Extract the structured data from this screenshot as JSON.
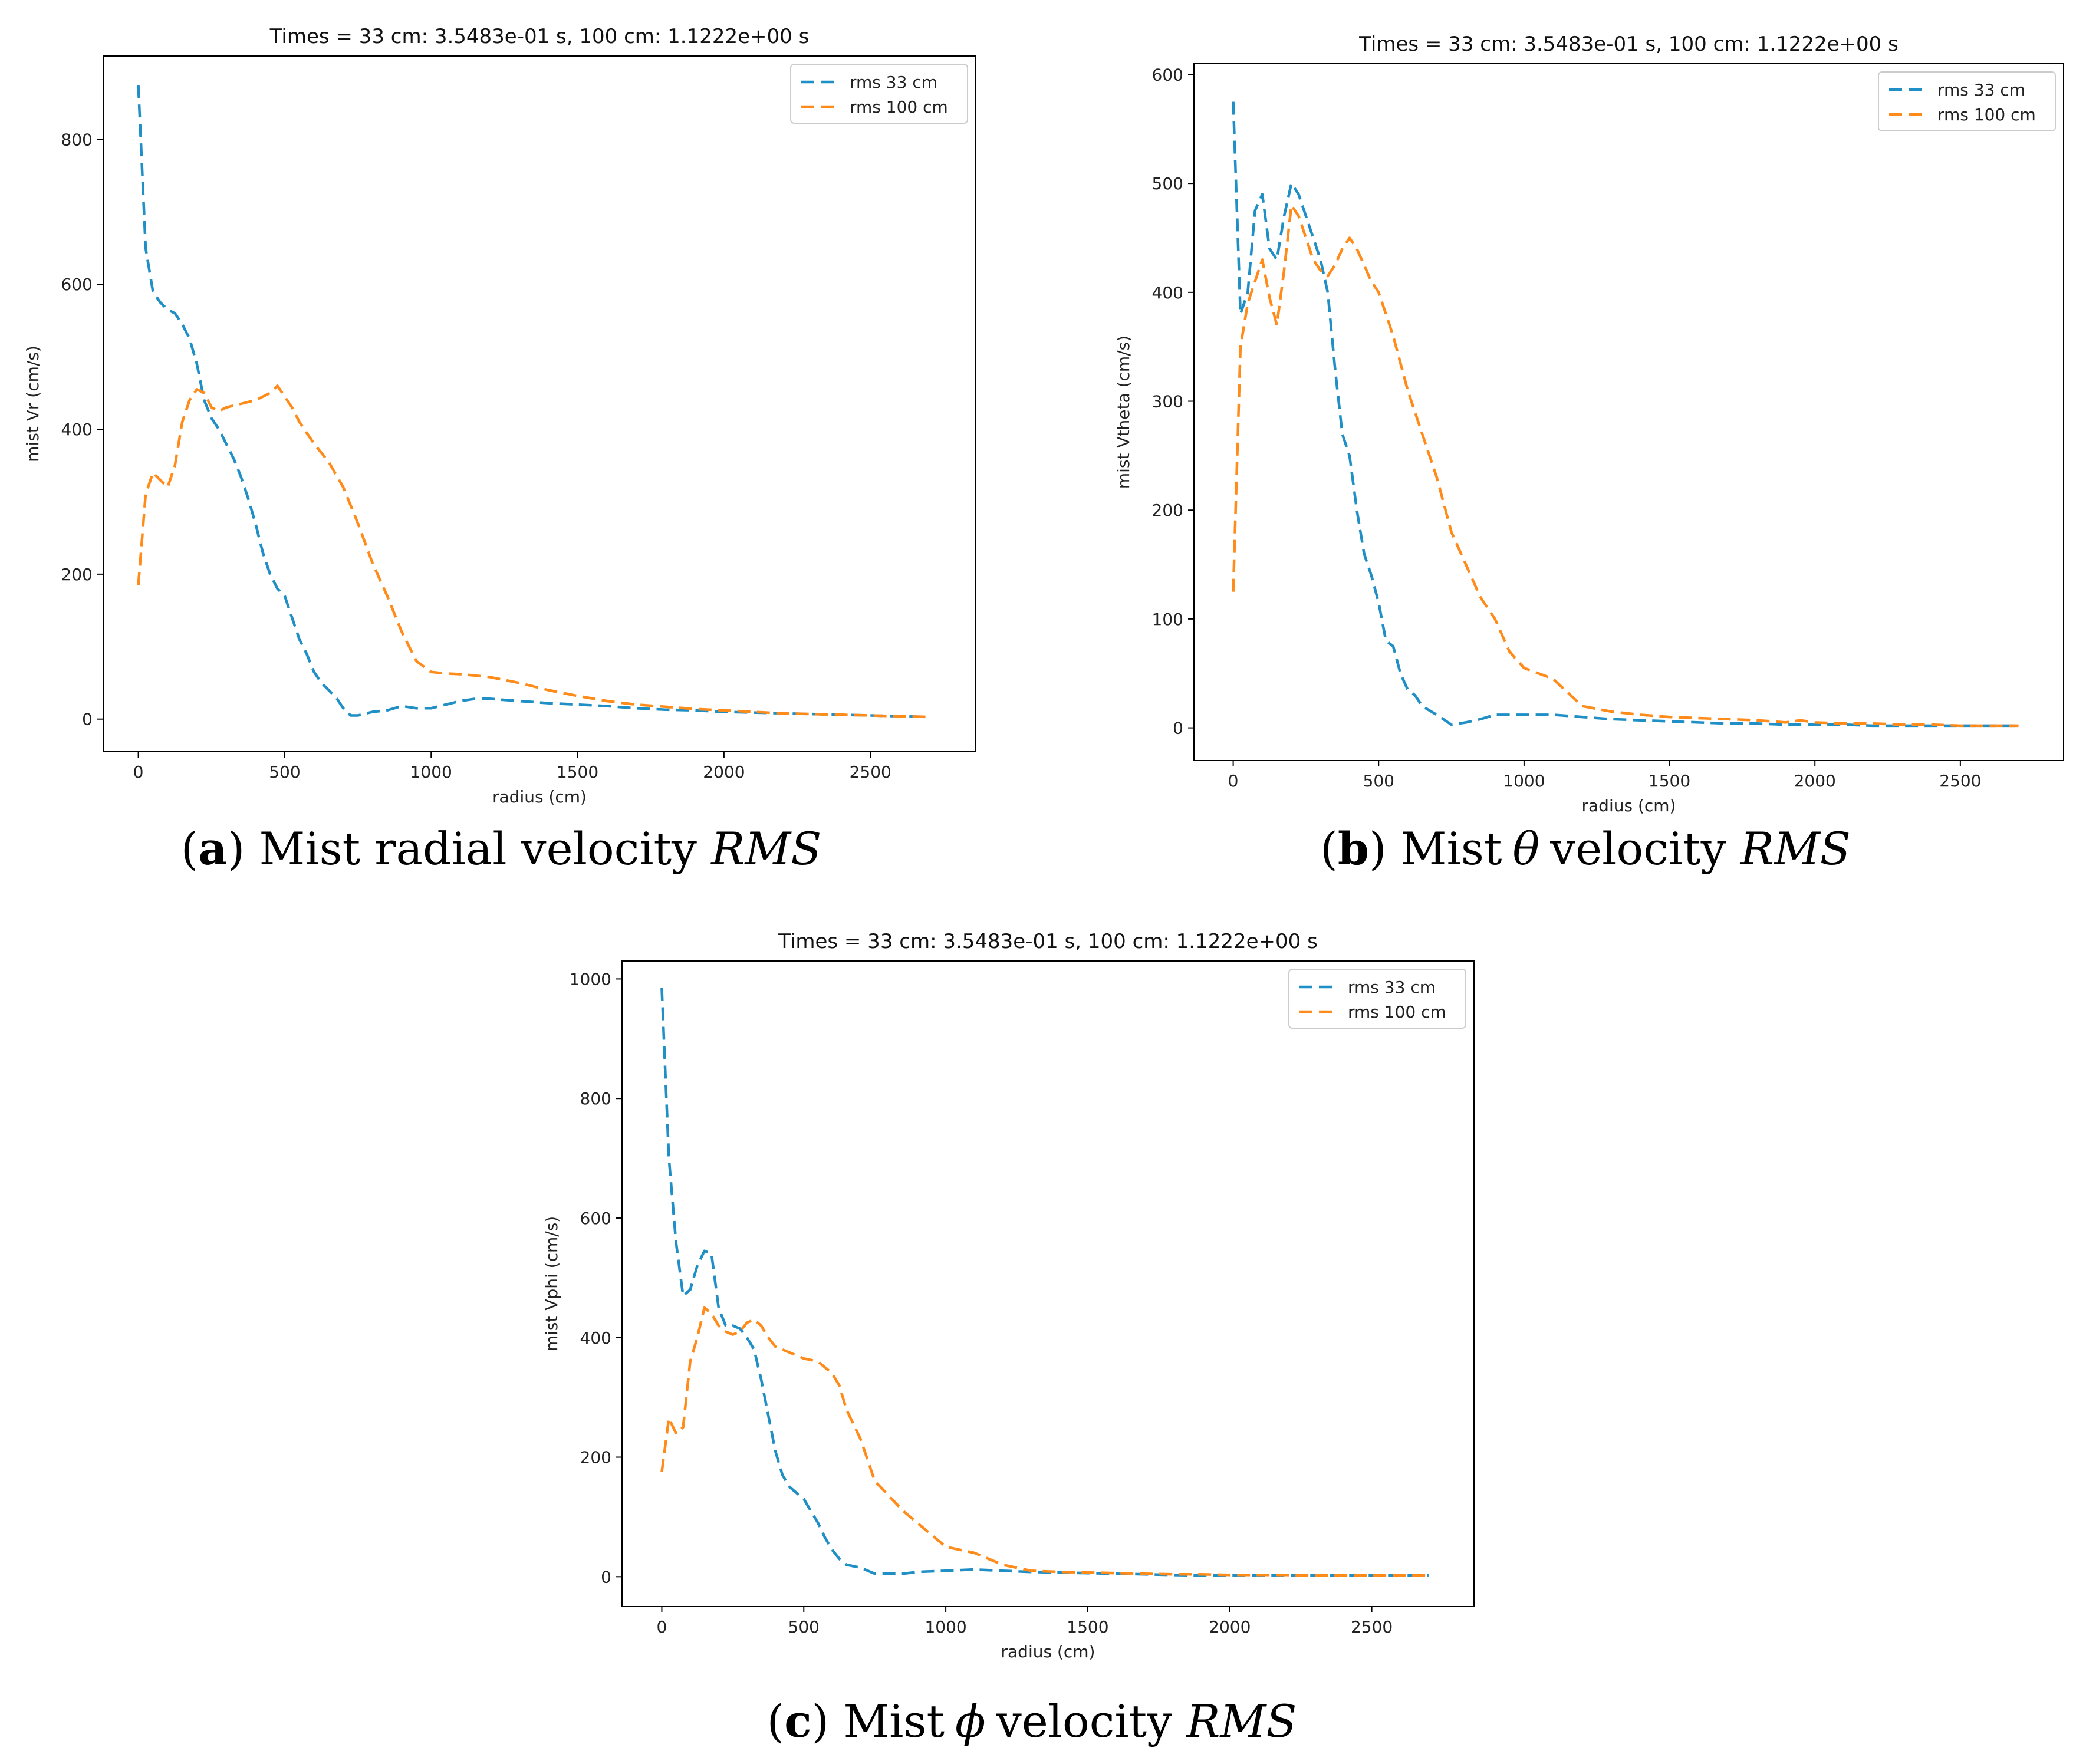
{
  "colors": {
    "rms_33": "#1f8fc6",
    "rms_100": "#ff8c1a",
    "axis": "#000000"
  },
  "chart_data": [
    {
      "type": "line",
      "panel": "a",
      "title": "Times = 33 cm:   3.5483e-01 s,   100 cm:   1.1222e+00 s",
      "xlabel": "radius (cm)",
      "ylabel": "mist Vr (cm/s)",
      "xlim": [
        -120,
        2860
      ],
      "ylim": [
        -45,
        915
      ],
      "xticks": [
        0,
        500,
        1000,
        1500,
        2000,
        2500
      ],
      "yticks": [
        0,
        200,
        400,
        600,
        800
      ],
      "legend": "top-right",
      "grid": false,
      "series": [
        {
          "name": "rms 33 cm",
          "color": "#1f8fc6",
          "x": [
            0,
            25,
            50,
            75,
            100,
            125,
            150,
            175,
            200,
            225,
            250,
            275,
            300,
            325,
            350,
            375,
            400,
            425,
            450,
            475,
            500,
            525,
            550,
            575,
            600,
            625,
            650,
            675,
            700,
            725,
            750,
            800,
            850,
            900,
            950,
            1000,
            1050,
            1100,
            1150,
            1200,
            1300,
            1400,
            1500,
            1600,
            1700,
            1800,
            1900,
            2000,
            2100,
            2200,
            2300,
            2400,
            2500,
            2600,
            2700
          ],
          "y": [
            875,
            650,
            590,
            575,
            565,
            560,
            545,
            525,
            490,
            440,
            415,
            400,
            380,
            360,
            335,
            305,
            270,
            230,
            200,
            180,
            170,
            140,
            110,
            90,
            65,
            50,
            40,
            30,
            15,
            5,
            5,
            10,
            12,
            18,
            15,
            15,
            20,
            25,
            28,
            28,
            25,
            22,
            20,
            18,
            15,
            13,
            12,
            10,
            9,
            8,
            7,
            6,
            5,
            4,
            3
          ]
        },
        {
          "name": "rms 100 cm",
          "color": "#ff8c1a",
          "x": [
            0,
            25,
            50,
            75,
            100,
            125,
            150,
            175,
            200,
            225,
            250,
            275,
            300,
            350,
            400,
            450,
            475,
            500,
            525,
            550,
            600,
            650,
            700,
            750,
            800,
            850,
            900,
            950,
            1000,
            1050,
            1100,
            1200,
            1300,
            1400,
            1500,
            1600,
            1700,
            1800,
            1900,
            2000,
            2100,
            2200,
            2300,
            2400,
            2500,
            2600,
            2700
          ],
          "y": [
            185,
            310,
            340,
            330,
            320,
            350,
            410,
            440,
            455,
            450,
            430,
            425,
            430,
            435,
            440,
            450,
            460,
            445,
            430,
            410,
            380,
            355,
            320,
            270,
            215,
            170,
            120,
            80,
            65,
            63,
            62,
            58,
            50,
            40,
            32,
            25,
            20,
            17,
            14,
            12,
            10,
            8,
            7,
            6,
            5,
            4,
            3
          ]
        }
      ]
    },
    {
      "type": "line",
      "panel": "b",
      "title": "Times = 33 cm:   3.5483e-01 s,   100 cm:   1.1222e+00 s",
      "xlabel": "radius (cm)",
      "ylabel": "mist Vtheta (cm/s)",
      "xlim": [
        -135,
        2855
      ],
      "ylim": [
        -30,
        610
      ],
      "xticks": [
        0,
        500,
        1000,
        1500,
        2000,
        2500
      ],
      "yticks": [
        0,
        100,
        200,
        300,
        400,
        500,
        600
      ],
      "legend": "top-right",
      "grid": false,
      "series": [
        {
          "name": "rms 33 cm",
          "color": "#1f8fc6",
          "x": [
            0,
            25,
            50,
            75,
            100,
            125,
            150,
            175,
            200,
            225,
            250,
            275,
            300,
            325,
            350,
            375,
            400,
            425,
            450,
            475,
            500,
            525,
            550,
            575,
            600,
            625,
            650,
            700,
            750,
            800,
            850,
            900,
            1000,
            1100,
            1200,
            1300,
            1400,
            1500,
            1600,
            1700,
            1800,
            1900,
            2000,
            2100,
            2200,
            2300,
            2400,
            2500,
            2600,
            2700
          ],
          "y": [
            575,
            380,
            400,
            475,
            490,
            440,
            430,
            470,
            500,
            490,
            470,
            450,
            430,
            400,
            330,
            270,
            250,
            200,
            160,
            140,
            115,
            80,
            75,
            50,
            35,
            30,
            20,
            12,
            3,
            5,
            8,
            12,
            12,
            12,
            10,
            8,
            7,
            6,
            5,
            4,
            4,
            3,
            3,
            3,
            2,
            2,
            2,
            2,
            2,
            2
          ]
        },
        {
          "name": "rms 100 cm",
          "color": "#ff8c1a",
          "x": [
            0,
            25,
            50,
            75,
            100,
            125,
            150,
            175,
            200,
            225,
            250,
            275,
            300,
            325,
            350,
            375,
            400,
            425,
            450,
            475,
            500,
            550,
            600,
            650,
            700,
            750,
            800,
            850,
            900,
            950,
            1000,
            1100,
            1200,
            1300,
            1400,
            1500,
            1600,
            1700,
            1800,
            1850,
            1900,
            1950,
            2000,
            2100,
            2200,
            2300,
            2400,
            2500,
            2600,
            2700
          ],
          "y": [
            125,
            350,
            390,
            410,
            430,
            395,
            370,
            420,
            480,
            470,
            450,
            430,
            420,
            415,
            425,
            440,
            450,
            440,
            425,
            410,
            400,
            360,
            310,
            270,
            230,
            180,
            150,
            120,
            100,
            70,
            55,
            45,
            20,
            15,
            12,
            10,
            9,
            8,
            7,
            6,
            5,
            7,
            5,
            4,
            4,
            3,
            3,
            2,
            2,
            2
          ]
        }
      ]
    },
    {
      "type": "line",
      "panel": "c",
      "title": "Times = 33 cm:   3.5483e-01 s,   100 cm:   1.1222e+00 s",
      "xlabel": "radius (cm)",
      "ylabel": "mist Vphi (cm/s)",
      "xlim": [
        -140,
        2860
      ],
      "ylim": [
        -50,
        1030
      ],
      "xticks": [
        0,
        500,
        1000,
        1500,
        2000,
        2500
      ],
      "yticks": [
        0,
        200,
        400,
        600,
        800,
        1000
      ],
      "legend": "top-right",
      "grid": false,
      "series": [
        {
          "name": "rms 33 cm",
          "color": "#1f8fc6",
          "x": [
            0,
            25,
            50,
            75,
            100,
            125,
            150,
            175,
            200,
            225,
            250,
            275,
            300,
            325,
            350,
            375,
            400,
            425,
            450,
            475,
            500,
            525,
            550,
            575,
            600,
            625,
            650,
            700,
            750,
            800,
            850,
            900,
            1000,
            1100,
            1200,
            1300,
            1400,
            1500,
            1600,
            1700,
            1800,
            1900,
            2000,
            2100,
            2200,
            2300,
            2400,
            2500,
            2600,
            2700
          ],
          "y": [
            985,
            700,
            560,
            470,
            480,
            520,
            545,
            540,
            450,
            420,
            420,
            415,
            400,
            380,
            330,
            270,
            210,
            170,
            150,
            140,
            130,
            110,
            90,
            65,
            45,
            30,
            20,
            15,
            5,
            5,
            5,
            8,
            10,
            12,
            10,
            8,
            7,
            6,
            5,
            4,
            3,
            2,
            2,
            2,
            2,
            2,
            2,
            2,
            2,
            2
          ]
        },
        {
          "name": "rms 100 cm",
          "color": "#ff8c1a",
          "x": [
            0,
            25,
            50,
            75,
            100,
            125,
            150,
            175,
            200,
            225,
            250,
            275,
            300,
            325,
            350,
            375,
            400,
            425,
            450,
            500,
            550,
            600,
            625,
            650,
            700,
            750,
            800,
            850,
            900,
            950,
            1000,
            1100,
            1200,
            1300,
            1400,
            1500,
            1600,
            1700,
            1800,
            1900,
            2000,
            2100,
            2200,
            2300,
            2400,
            2500,
            2600,
            2700
          ],
          "y": [
            175,
            265,
            240,
            250,
            360,
            400,
            450,
            440,
            420,
            410,
            405,
            410,
            425,
            430,
            420,
            400,
            385,
            380,
            375,
            365,
            360,
            340,
            320,
            280,
            230,
            160,
            135,
            110,
            90,
            70,
            50,
            40,
            20,
            10,
            8,
            7,
            6,
            5,
            4,
            4,
            3,
            3,
            3,
            2,
            2,
            2,
            2,
            2
          ]
        }
      ]
    }
  ],
  "captions": [
    {
      "tag": "a",
      "text": "Mist radial velocity",
      "symbol": "",
      "rms": "RMS"
    },
    {
      "tag": "b",
      "text": "Mist",
      "symbol": "θ",
      "text2": "velocity",
      "rms": "RMS"
    },
    {
      "tag": "c",
      "text": "Mist",
      "symbol": "ϕ",
      "text2": "velocity",
      "rms": "RMS"
    }
  ]
}
